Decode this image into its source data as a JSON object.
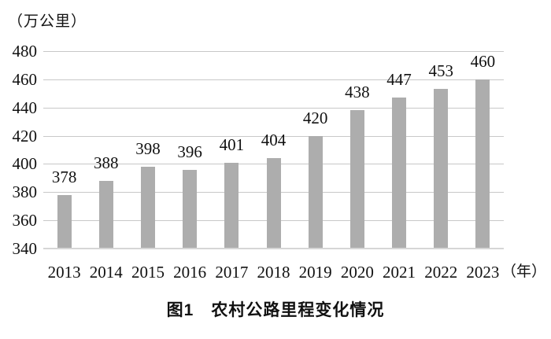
{
  "chart_data": {
    "type": "bar",
    "title": "图1　农村公路里程变化情况",
    "ylabel": "（万公里）",
    "xlabel": "（年）",
    "categories": [
      "2013",
      "2014",
      "2015",
      "2016",
      "2017",
      "2018",
      "2019",
      "2020",
      "2021",
      "2022",
      "2023"
    ],
    "values": [
      378,
      388,
      398,
      396,
      401,
      404,
      420,
      438,
      447,
      453,
      460
    ],
    "ylim": [
      340,
      480
    ],
    "ytick_step": 20,
    "grid": true,
    "legend": false,
    "colors": {
      "bar": "#adadad",
      "gridline": "#c8c8c8",
      "baseline": "#d6d6d6",
      "text": "#111111"
    }
  }
}
